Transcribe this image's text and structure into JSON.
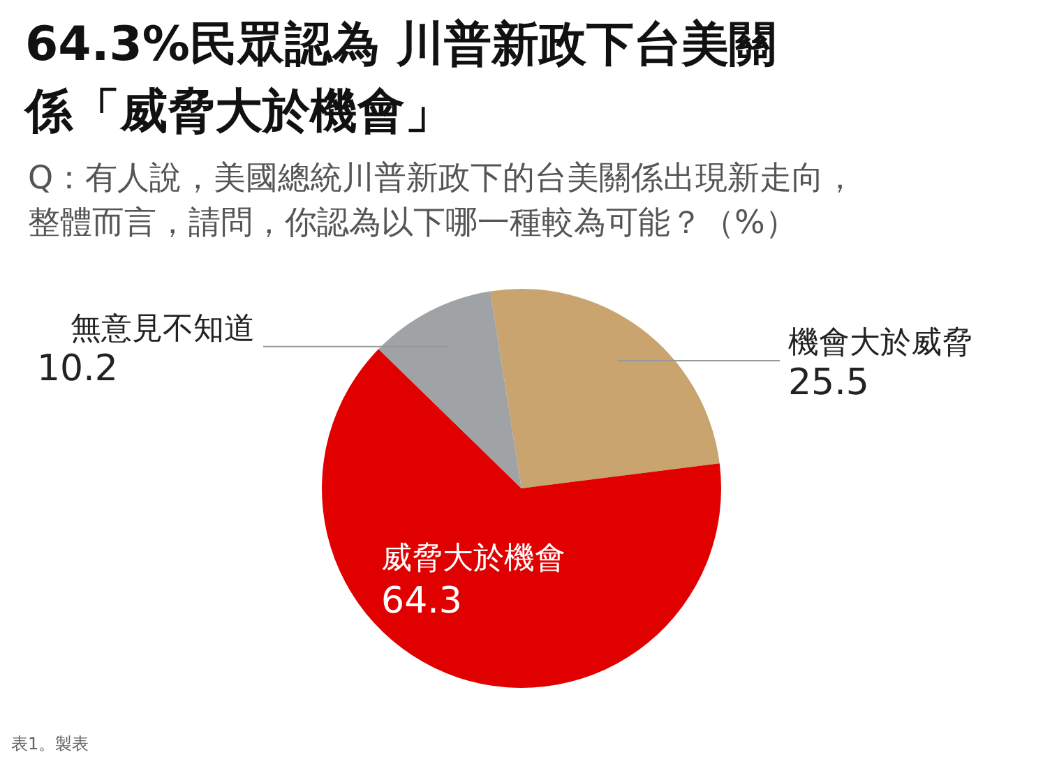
{
  "chart_data": {
    "type": "pie",
    "title": "64.3%民眾認為 川普新政下台美關係「威脅大於機會」",
    "subtitle": "Q：有人說，美國總統川普新政下的台美關係出現新走向，整體而言，請問，你認為以下哪一種較為可能？（%）",
    "categories": [
      "機會大於威脅",
      "威脅大於機會",
      "無意見不知道"
    ],
    "values": [
      25.5,
      64.3,
      10.2
    ],
    "colors": [
      "#c9a46e",
      "#e00000",
      "#9fa3a6"
    ],
    "data_labels": true,
    "legend": false,
    "annotations": [
      "表1。製表"
    ]
  }
}
